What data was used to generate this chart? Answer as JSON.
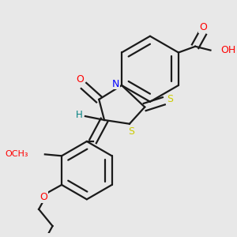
{
  "bg_color": "#e8e8e8",
  "bond_color": "#1a1a1a",
  "bond_width": 1.6,
  "atom_colors": {
    "O": "#ff0000",
    "N": "#0000ff",
    "S": "#cccc00",
    "H": "#008080",
    "C": "#1a1a1a"
  },
  "scale": 1.0
}
